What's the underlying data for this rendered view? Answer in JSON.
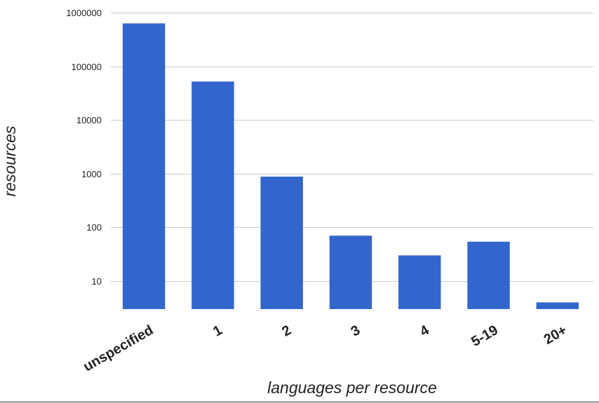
{
  "chart_data": {
    "type": "bar",
    "title": "",
    "xlabel": "languages per resource",
    "ylabel": "resources",
    "y_scale": "log",
    "ylim": [
      3,
      1000000
    ],
    "y_ticks": [
      10,
      100,
      1000,
      10000,
      100000,
      1000000
    ],
    "y_tick_labels": [
      "10",
      "100",
      "1000",
      "10000",
      "100000",
      "1000000"
    ],
    "categories": [
      "unspecified",
      "1",
      "2",
      "3",
      "4",
      "5-19",
      "20+"
    ],
    "values": [
      630000,
      52000,
      880,
      70,
      30,
      54,
      4
    ],
    "grid": true,
    "legend": "none",
    "bar_color": "#3366cc"
  }
}
